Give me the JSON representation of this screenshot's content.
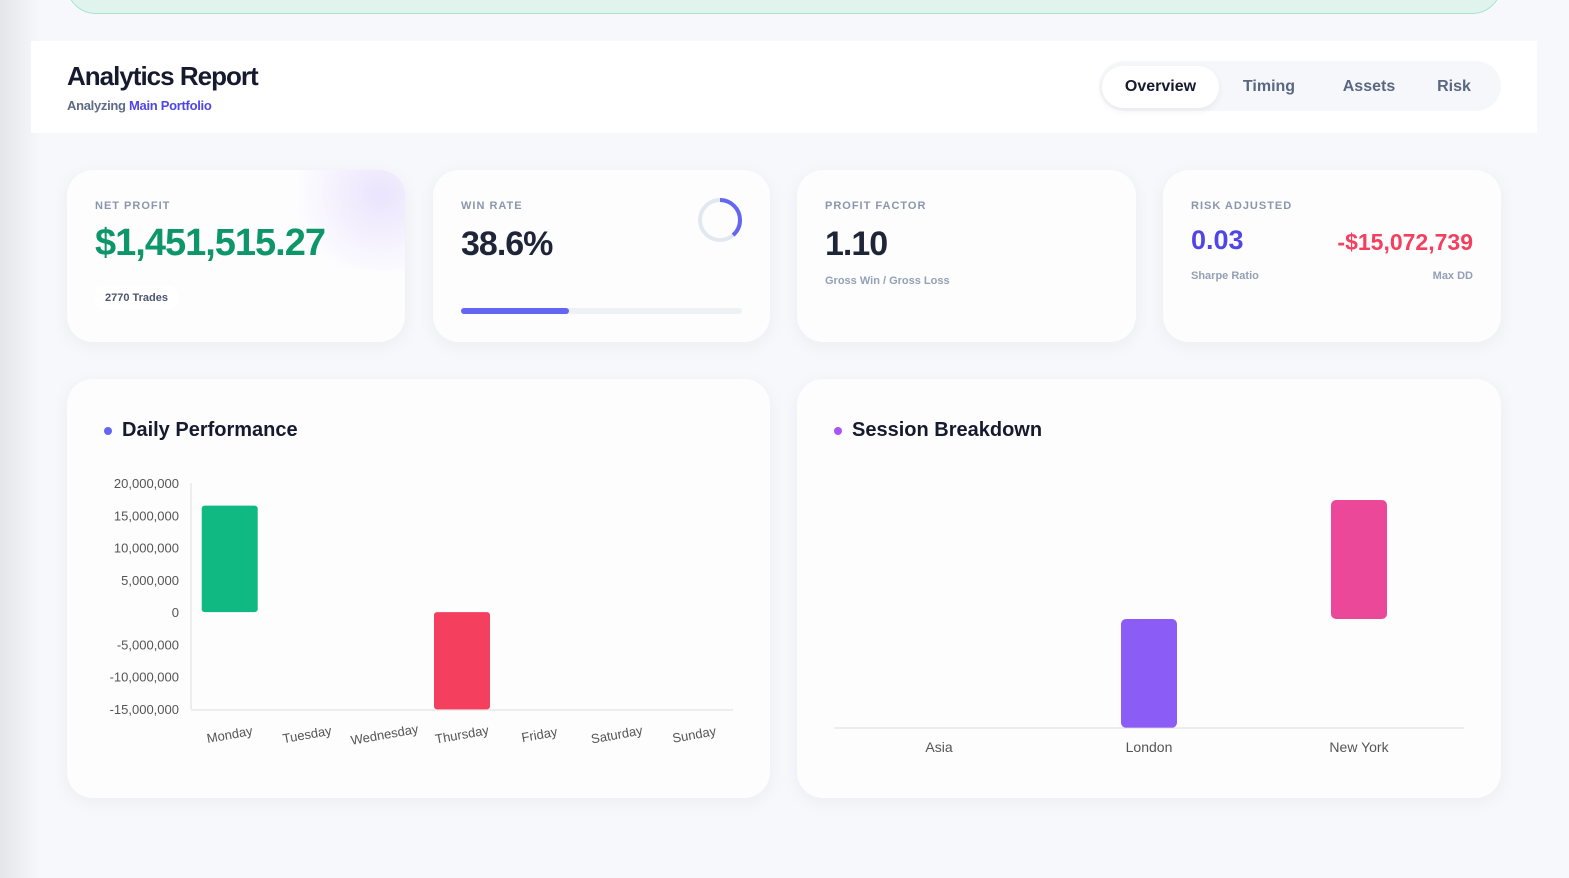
{
  "header": {
    "title": "Analytics Report",
    "subtitle_prefix": "Analyzing",
    "portfolio": "Main Portfolio"
  },
  "tabs": [
    {
      "label": "Overview",
      "active": true
    },
    {
      "label": "Timing"
    },
    {
      "label": "Assets"
    },
    {
      "label": "Risk"
    }
  ],
  "kpis": {
    "net_profit": {
      "label": "NET PROFIT",
      "value": "$1,451,515.27",
      "trades": "2770 Trades",
      "color": "#0d9668"
    },
    "win_rate": {
      "label": "WIN RATE",
      "value": "38.6%",
      "progress": 0.386,
      "color": "#6366f1"
    },
    "profit_factor": {
      "label": "PROFIT FACTOR",
      "value": "1.10",
      "caption": "Gross Win / Gross Loss"
    },
    "risk": {
      "label": "RISK ADJUSTED",
      "sharpe": "0.03",
      "sharpe_label": "Sharpe Ratio",
      "max_dd": "-$15,072,739",
      "max_dd_label": "Max DD",
      "sharpe_color": "#4f46e5",
      "dd_color": "#f43f5e"
    }
  },
  "chart_data": [
    {
      "type": "bar",
      "title": "Daily Performance",
      "categories": [
        "Monday",
        "Tuesday",
        "Wednesday",
        "Thursday",
        "Friday",
        "Saturday",
        "Sunday"
      ],
      "values": [
        16500000,
        0,
        0,
        -15050000,
        0,
        0,
        0
      ],
      "ylim": [
        -15000000,
        20000000
      ],
      "yticks": [
        "20,000,000",
        "15,000,000",
        "10,000,000",
        "5,000,000",
        "0",
        "-5,000,000",
        "-10,000,000",
        "-15,000,000"
      ],
      "colors": {
        "positive": "#10b981",
        "negative": "#f43f5e"
      },
      "dot_color": "#6366f1"
    },
    {
      "type": "bar",
      "title": "Session Breakdown",
      "categories": [
        "Asia",
        "London",
        "New York"
      ],
      "values": [
        0,
        -15800000,
        17300000
      ],
      "colors": [
        "#8b5cf6",
        "#8b5cf6",
        "#ec4899"
      ],
      "dot_color": "#a855f7"
    }
  ]
}
